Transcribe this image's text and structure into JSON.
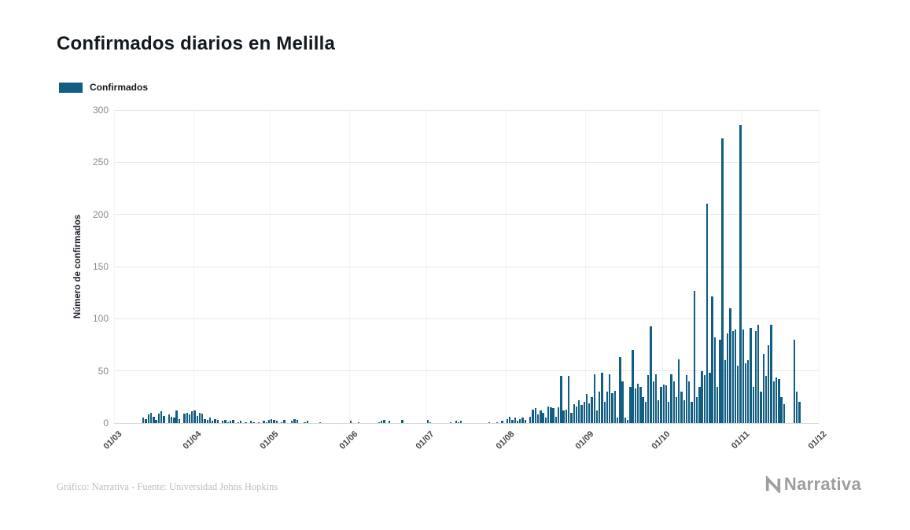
{
  "title": "Confirmados diarios en Melilla",
  "legend": {
    "label": "Confirmados",
    "swatch_color": "#115e82"
  },
  "footer": {
    "credit": "Gráfico: Narrativa - Fuente: Universidad Johns Hopkins"
  },
  "logo": {
    "text": "Narrativa"
  },
  "chart_data": {
    "type": "bar",
    "title": "Confirmados diarios en Melilla",
    "xlabel": "",
    "ylabel": "Número de confirmados",
    "ylim": [
      0,
      300
    ],
    "y_ticks": [
      0,
      50,
      100,
      150,
      200,
      250,
      300
    ],
    "x_ticks": [
      {
        "label": "01/03",
        "day": 0
      },
      {
        "label": "01/04",
        "day": 31
      },
      {
        "label": "01/05",
        "day": 61
      },
      {
        "label": "01/06",
        "day": 92
      },
      {
        "label": "01/07",
        "day": 122
      },
      {
        "label": "01/08",
        "day": 153
      },
      {
        "label": "01/09",
        "day": 184
      },
      {
        "label": "01/10",
        "day": 214
      },
      {
        "label": "01/11",
        "day": 245
      },
      {
        "label": "01/12",
        "day": 275
      }
    ],
    "total_days": 275,
    "series_name": "Confirmados",
    "bar_color": "#115e82",
    "grid": true,
    "legend_position": "top-left",
    "x_unit": "daily values, day 0 = 01/03",
    "values": [
      0,
      0,
      0,
      0,
      0,
      0,
      0,
      0,
      0,
      0,
      0,
      5,
      4,
      8,
      10,
      6,
      3,
      9,
      11,
      7,
      0,
      8,
      6,
      5,
      12,
      4,
      0,
      9,
      10,
      8,
      11,
      12,
      7,
      10,
      9,
      4,
      3,
      5,
      2,
      4,
      3,
      0,
      2,
      3,
      1,
      2,
      3,
      0,
      1,
      2,
      0,
      1,
      0,
      2,
      1,
      0,
      1,
      0,
      2,
      1,
      3,
      4,
      3,
      2,
      0,
      1,
      3,
      0,
      0,
      2,
      4,
      3,
      0,
      0,
      1,
      2,
      0,
      0,
      0,
      0,
      1,
      0,
      0,
      0,
      0,
      0,
      0,
      0,
      0,
      0,
      0,
      0,
      2,
      0,
      0,
      1,
      0,
      0,
      0,
      0,
      0,
      0,
      0,
      1,
      2,
      3,
      0,
      2,
      0,
      0,
      0,
      0,
      3,
      0,
      0,
      0,
      0,
      0,
      0,
      0,
      0,
      0,
      3,
      1,
      0,
      0,
      0,
      0,
      0,
      0,
      0,
      1,
      0,
      2,
      1,
      2,
      0,
      0,
      0,
      0,
      0,
      0,
      0,
      0,
      0,
      0,
      1,
      0,
      0,
      1,
      0,
      2,
      0,
      4,
      6,
      3,
      5,
      2,
      4,
      5,
      3,
      0,
      6,
      13,
      14,
      8,
      12,
      10,
      5,
      16,
      15,
      14,
      6,
      15,
      45,
      12,
      13,
      45,
      10,
      18,
      16,
      22,
      17,
      20,
      28,
      19,
      25,
      47,
      12,
      30,
      48,
      20,
      30,
      47,
      29,
      31,
      5,
      63,
      40,
      5,
      3,
      35,
      70,
      33,
      38,
      35,
      25,
      20,
      46,
      93,
      40,
      47,
      22,
      35,
      37,
      36,
      20,
      47,
      40,
      25,
      61,
      30,
      22,
      46,
      40,
      20,
      127,
      25,
      35,
      50,
      46,
      210,
      48,
      121,
      82,
      35,
      80,
      273,
      60,
      86,
      110,
      88,
      90,
      55,
      286,
      90,
      57,
      60,
      91,
      35,
      88,
      94,
      30,
      66,
      45,
      75,
      94,
      40,
      44,
      42,
      25,
      18,
      0,
      0,
      0,
      80,
      30,
      20,
      0,
      0,
      0,
      0,
      0,
      0,
      0
    ]
  }
}
